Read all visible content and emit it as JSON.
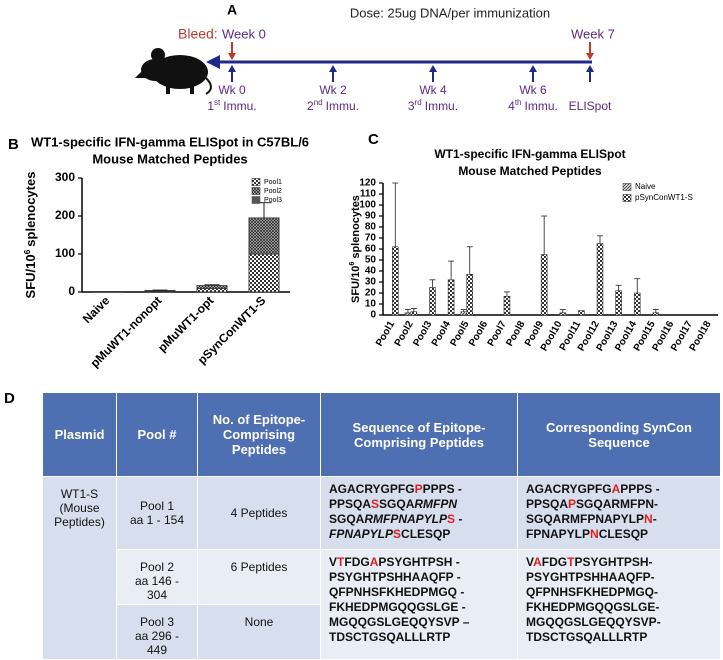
{
  "panel_a": {
    "label": "A",
    "dose": "Dose: 25ug DNA/per immunization",
    "bleed": "Bleed:",
    "bleeds": [
      "Week 0",
      "Week 7"
    ],
    "timepoints": [
      {
        "week": "Wk 0",
        "ord": "1",
        "sup": "st",
        "event": "Immu."
      },
      {
        "week": "Wk 2",
        "ord": "2",
        "sup": "nd",
        "event": "Immu."
      },
      {
        "week": "Wk 4",
        "ord": "3",
        "sup": "rd",
        "event": "Immu."
      },
      {
        "week": "Wk 6",
        "ord": "4",
        "sup": "th",
        "event": "Immu."
      },
      {
        "event": "ELISpot"
      }
    ]
  },
  "chart_data": [
    {
      "type": "stacked_bar",
      "panel": "B",
      "title": [
        "WT1-specific IFN-gamma ELISpot in C57BL/6",
        "Mouse Matched Peptides"
      ],
      "y_label": {
        "pre": "SFU/10",
        "sup": "6",
        "post": "splenocytes"
      },
      "categories": [
        "Naive",
        "pMuWT1-nonopt",
        "pMuWT1-opt",
        "pSynConWT1-S"
      ],
      "series": [
        {
          "name": "Pool1",
          "pattern": "check",
          "color": "#333333",
          "values": [
            1,
            2,
            9,
            100
          ],
          "errors": [
            0,
            0,
            0,
            20
          ]
        },
        {
          "name": "Pool2",
          "pattern": "cross",
          "color": "#333333",
          "values": [
            0,
            2,
            8,
            95
          ],
          "errors": [
            0,
            1,
            2,
            40
          ]
        },
        {
          "name": "Pool3",
          "pattern": "solid",
          "color": "#555555",
          "values": [
            0,
            0,
            0,
            0
          ],
          "errors": [
            0,
            0,
            0,
            0
          ]
        }
      ],
      "ylim": [
        0,
        300
      ],
      "yticks": [
        0,
        100,
        200,
        300
      ],
      "legend": "upper right"
    },
    {
      "type": "grouped_bar",
      "panel": "C",
      "title": [
        "WT1-specific IFN-gamma ELISpot",
        "Mouse Matched Peptides"
      ],
      "y_label": {
        "pre": "SFU/10",
        "sup": "6",
        "post": "splenocytes"
      },
      "categories": [
        "Pool1",
        "Pool2",
        "Pool3",
        "Pool4",
        "Pool5",
        "Pool6",
        "Pool7",
        "Pool8",
        "Pool9",
        "Pool10",
        "Pool11",
        "Pool12",
        "Pool13",
        "Pool14",
        "Pool15",
        "Pool16",
        "Pool17",
        "Pool18"
      ],
      "series": [
        {
          "name": "Naive",
          "pattern": "hatch",
          "color": "#444444",
          "values": [
            0,
            2,
            0,
            0,
            3,
            0,
            0,
            0,
            0,
            0,
            0,
            0,
            0,
            0,
            0,
            0,
            0,
            0
          ],
          "errors": [
            0,
            3,
            0,
            0,
            2,
            0,
            0,
            0,
            0,
            0,
            0,
            0,
            0,
            0,
            0,
            0,
            0,
            0
          ]
        },
        {
          "name": "pSynConWT1-S",
          "pattern": "check",
          "color": "#333333",
          "values": [
            62,
            3,
            25,
            32,
            37,
            0,
            17,
            0,
            55,
            2,
            4,
            65,
            22,
            20,
            2,
            0,
            0,
            0
          ],
          "errors": [
            58,
            3,
            7,
            17,
            25,
            0,
            4,
            0,
            35,
            3,
            0,
            7,
            5,
            13,
            3,
            0,
            0,
            0
          ]
        }
      ],
      "ylim": [
        0,
        120
      ],
      "yticks": [
        0,
        10,
        20,
        30,
        40,
        50,
        60,
        70,
        80,
        90,
        100,
        110,
        120
      ],
      "legend": "upper right"
    }
  ],
  "table": {
    "label": "D",
    "header": [
      "Plasmid",
      "Pool #",
      "No. of Epitope-Comprising Peptides",
      "Sequence of Epitope-Comprising Peptides",
      "Corresponding SynCon Sequence"
    ],
    "rows": [
      {
        "plasmid": "WT1-S (Mouse Peptides)",
        "pool": [
          "Pool 1",
          "aa 1 - 154"
        ],
        "peptides": "4 Peptides",
        "sequence": [
          [
            {
              "t": "AGACRYGPFG"
            },
            {
              "t": "P",
              "r": true
            },
            {
              "t": "PPPS -"
            }
          ],
          [
            {
              "t": "PPSQA"
            },
            {
              "t": "S",
              "r": true
            },
            {
              "t": "SGQA"
            },
            {
              "t": "RMFPN",
              "i": true
            }
          ],
          [
            {
              "t": "SGQA"
            },
            {
              "t": "RMFPNAPYLP",
              "i": true
            },
            {
              "t": "S",
              "r": true
            },
            {
              "t": " -"
            }
          ],
          [
            {
              "t": "FPNAPYLP",
              "i": true
            },
            {
              "t": "S",
              "r": true
            },
            {
              "t": "CLESQP"
            }
          ]
        ],
        "syncon": [
          [
            {
              "t": "AGACRYGPFG"
            },
            {
              "t": "A",
              "r": true
            },
            {
              "t": "PPPS -"
            }
          ],
          [
            {
              "t": "PPSQA"
            },
            {
              "t": "P",
              "r": true
            },
            {
              "t": "SGQARMFPN-"
            }
          ],
          [
            {
              "t": "SGQARMFPNAPYLP"
            },
            {
              "t": "N",
              "r": true
            },
            {
              "t": "-"
            }
          ],
          [
            {
              "t": "FPNAPYLP"
            },
            {
              "t": "N",
              "r": true
            },
            {
              "t": "CLESQP"
            }
          ]
        ]
      },
      {
        "pool": [
          "Pool 2",
          "aa 146 -",
          "304"
        ],
        "peptides": "6 Peptides",
        "sequence": [
          [
            {
              "t": "V"
            },
            {
              "t": "T",
              "r": true
            },
            {
              "t": "FDG"
            },
            {
              "t": "A",
              "r": true
            },
            {
              "t": "PSYGHTPSH -"
            }
          ],
          [
            {
              "t": "PSYGHTPSHHAAQFP -"
            }
          ],
          [
            {
              "t": "QFPNHSFKHEDPMGQ -"
            }
          ],
          [
            {
              "t": "FKHEDPMGQQGSLGE -"
            }
          ],
          [
            {
              "t": "MGQQGSLGEQQYSVP –"
            }
          ],
          [
            {
              "t": "TDSCTGSQALLLRTP"
            }
          ]
        ],
        "syncon": [
          [
            {
              "t": "V"
            },
            {
              "t": "A",
              "r": true
            },
            {
              "t": "FDG"
            },
            {
              "t": "T",
              "r": true
            },
            {
              "t": "PSYGHTPSH-"
            }
          ],
          [
            {
              "t": "PSYGHTPSHHAAQFP-"
            }
          ],
          [
            {
              "t": "QFPNHSFKHEDPMGQ-"
            }
          ],
          [
            {
              "t": "FKHEDPMGQQGSLGE-"
            }
          ],
          [
            {
              "t": "MGQQGSLGEQQYSVP-"
            }
          ],
          [
            {
              "t": "TDSCTGSQALLLRTP"
            }
          ]
        ]
      },
      {
        "pool": [
          "Pool 3",
          "aa 296 -",
          "449"
        ],
        "peptides": "None"
      }
    ]
  }
}
